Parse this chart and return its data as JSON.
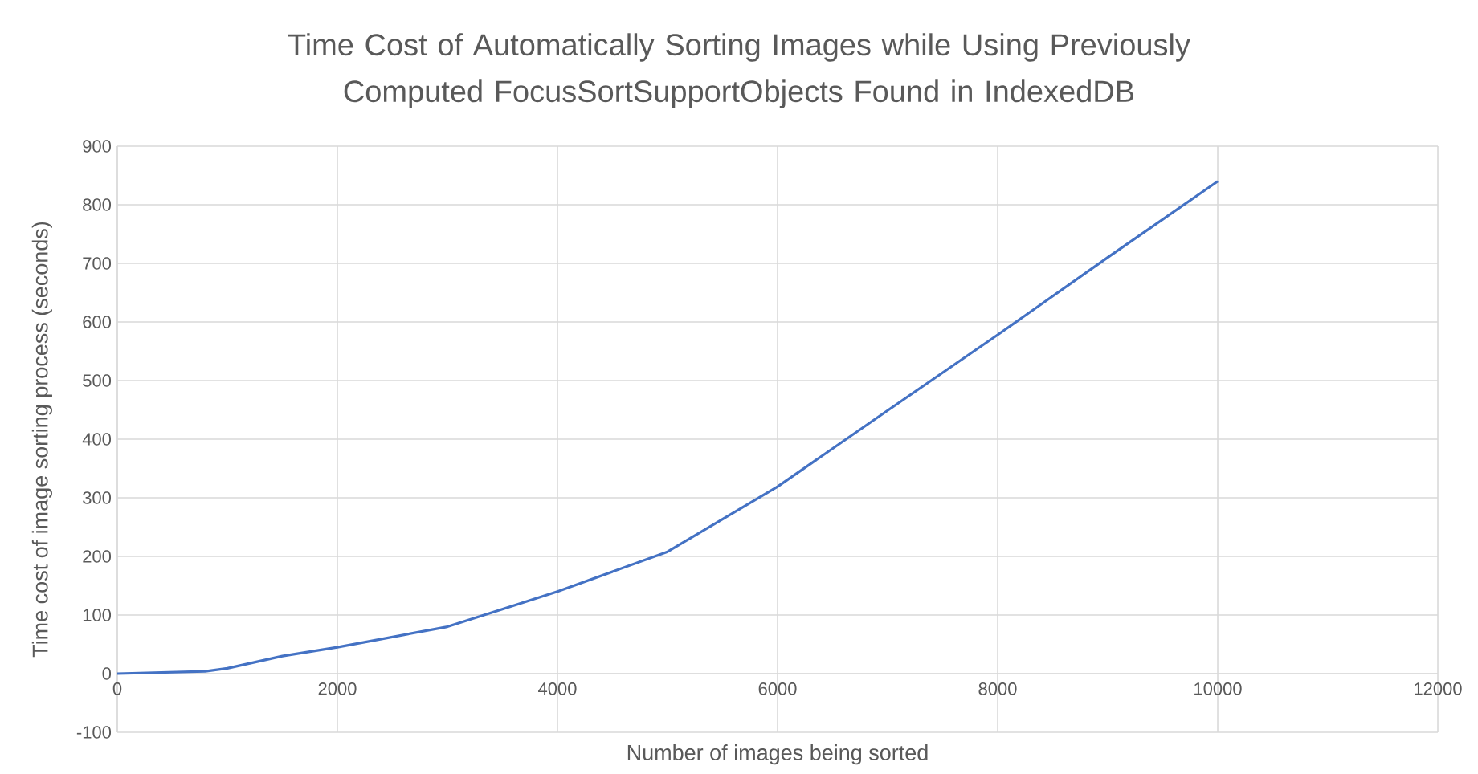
{
  "chart_data": {
    "type": "line",
    "title": "Time Cost of Automatically Sorting Images while Using Previously Computed FocusSortSupportObjects Found in IndexedDB",
    "xlabel": "Number of images being sorted",
    "ylabel": "Time cost of image sorting process (seconds)",
    "x": [
      0,
      800,
      1000,
      1500,
      2000,
      3000,
      4000,
      5000,
      6000,
      7000,
      8000,
      9000,
      10000
    ],
    "series": [
      {
        "color": "#4472c4",
        "values": [
          0,
          4,
          9,
          30,
          45,
          80,
          140,
          208,
          319,
          449,
          578,
          710,
          840
        ]
      }
    ],
    "xlim": [
      0,
      12000
    ],
    "xticks": [
      0,
      2000,
      4000,
      6000,
      8000,
      10000,
      12000
    ],
    "ylim": [
      -100,
      900
    ],
    "yticks": [
      -100,
      0,
      100,
      200,
      300,
      400,
      500,
      600,
      700,
      800,
      900
    ],
    "grid": true,
    "marker": "none",
    "line_style": "solid"
  }
}
